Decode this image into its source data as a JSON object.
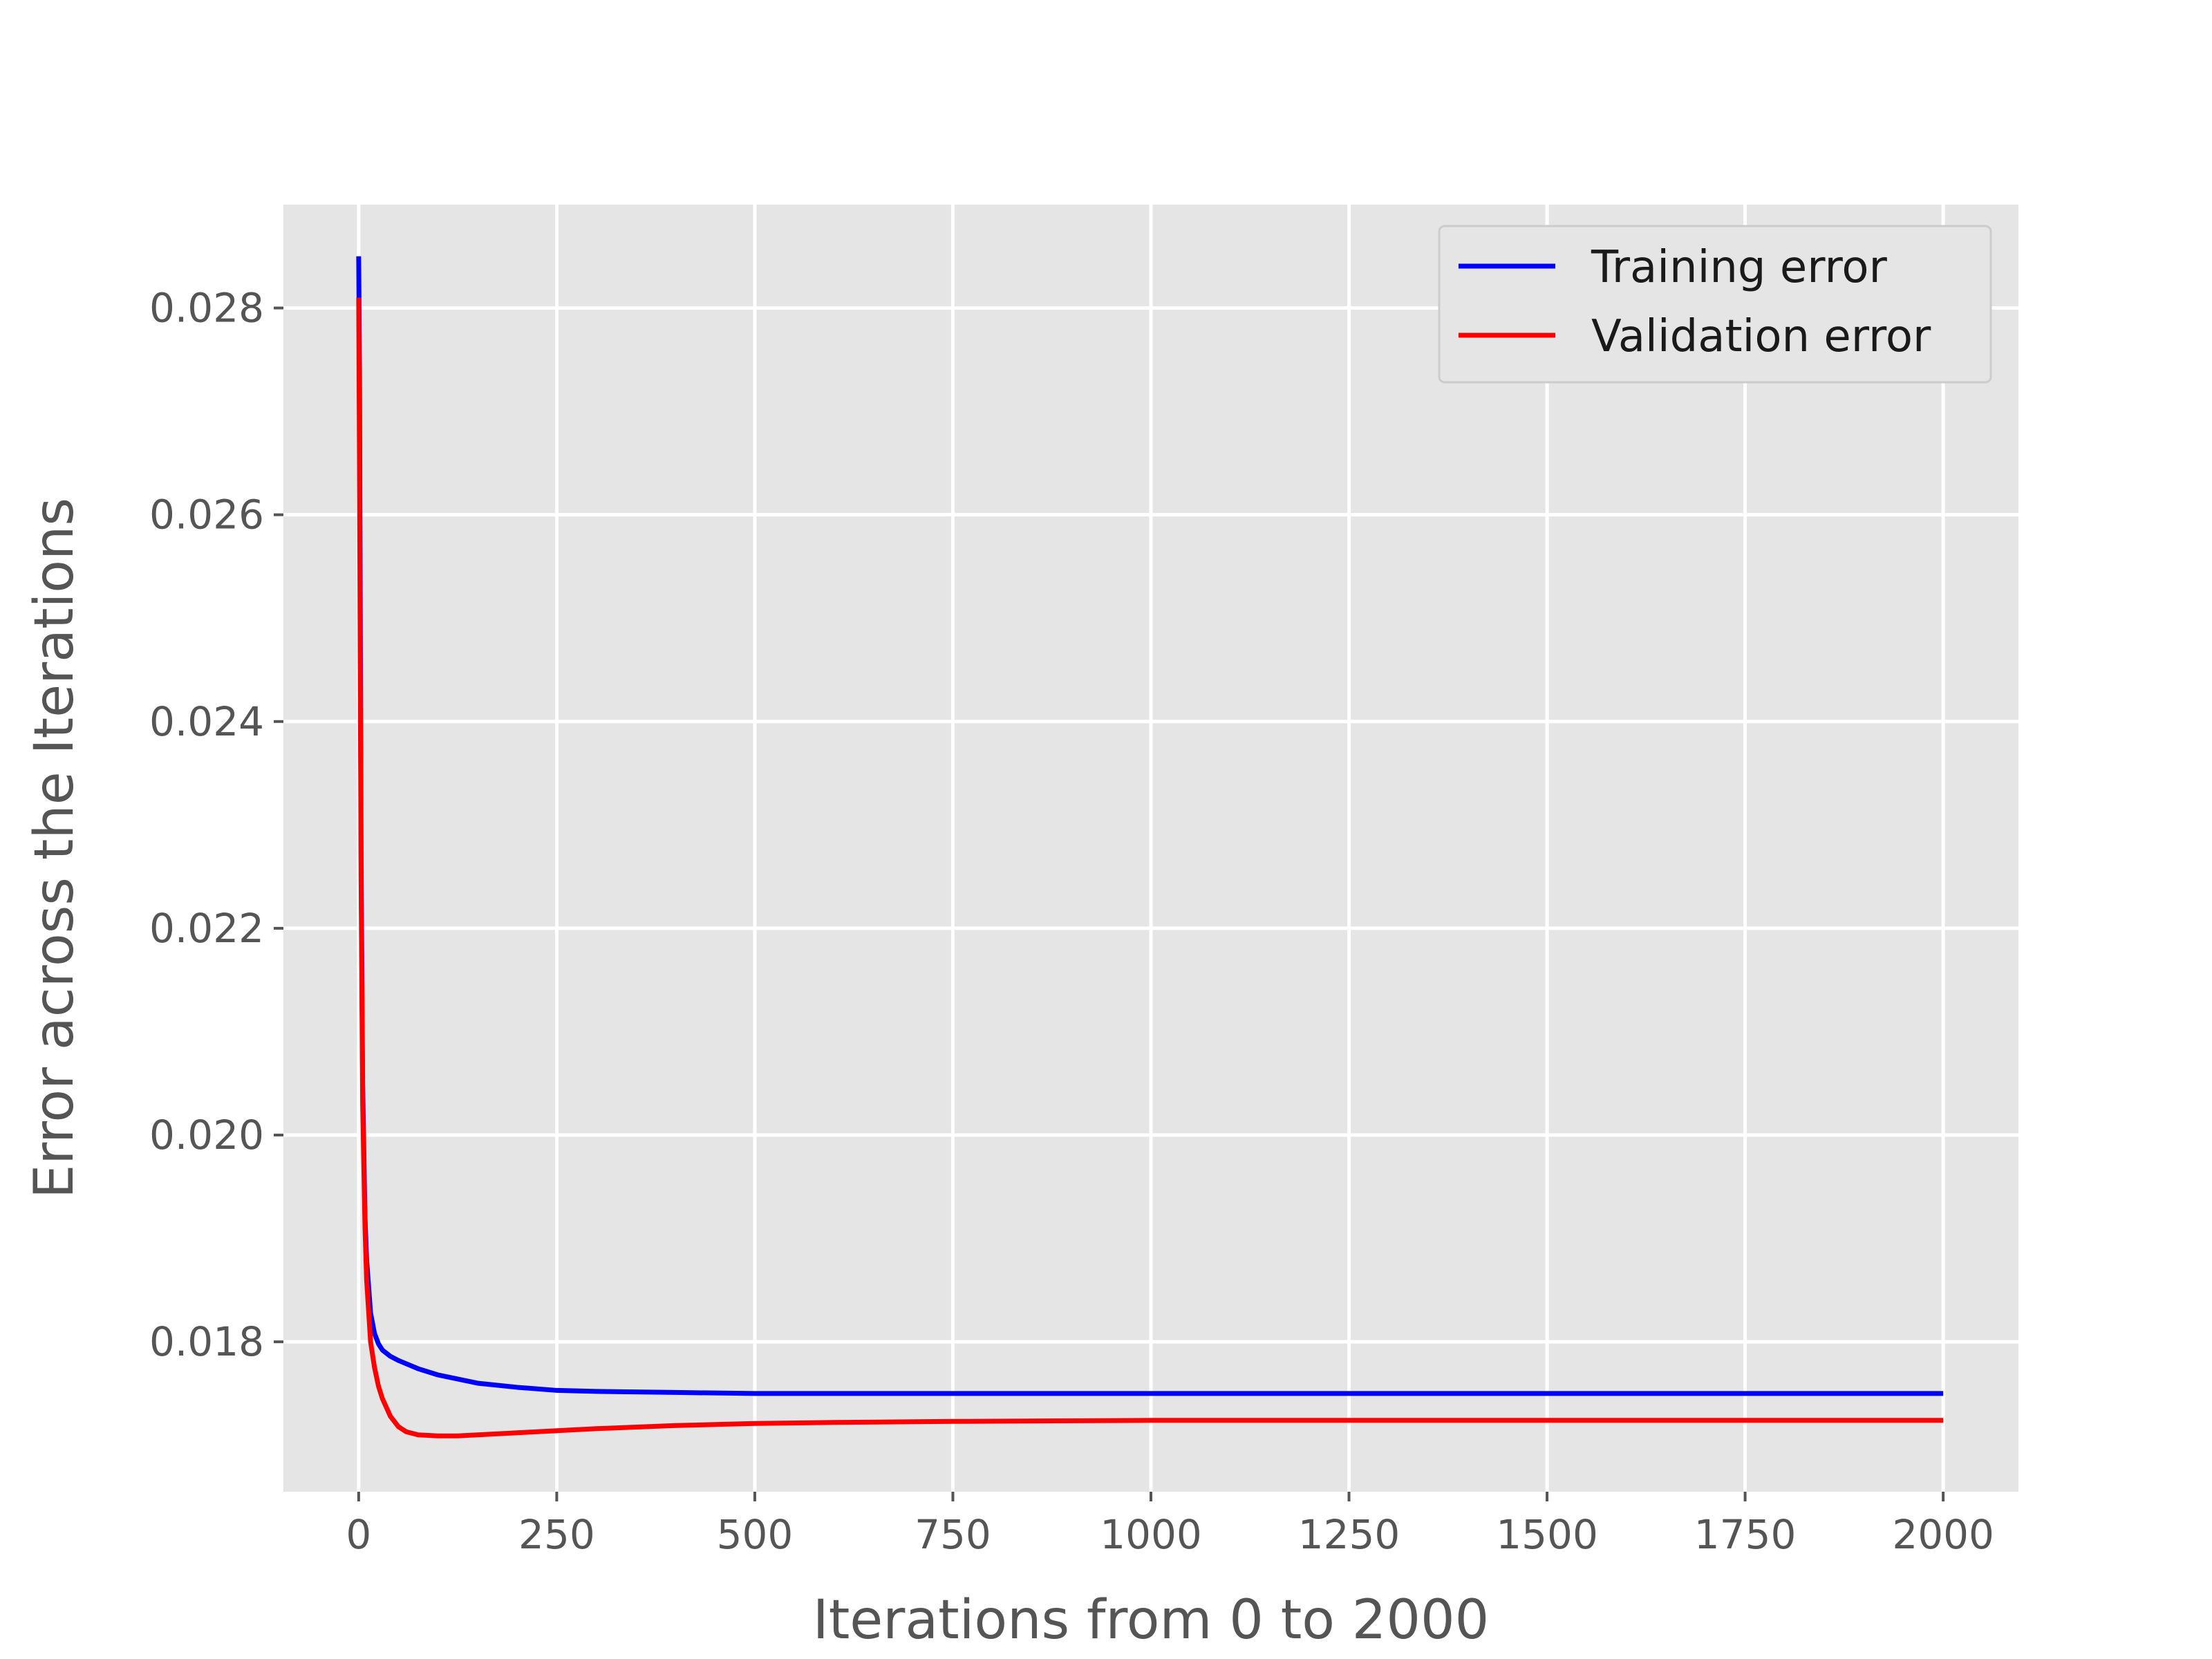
{
  "chart_data": {
    "type": "line",
    "title": "",
    "xlabel": "Iterations from 0 to 2000",
    "ylabel": "Error across the Iterations",
    "xlim": [
      -95,
      2095
    ],
    "ylim": [
      0.01655,
      0.029
    ],
    "grid": true,
    "legend_position": "top-right",
    "x_ticks": [
      0,
      250,
      500,
      750,
      1000,
      1250,
      1500,
      1750,
      2000
    ],
    "x_tick_labels": [
      "0",
      "250",
      "500",
      "750",
      "1000",
      "1250",
      "1500",
      "1750",
      "2000"
    ],
    "y_ticks": [
      0.018,
      0.02,
      0.022,
      0.024,
      0.026,
      0.028
    ],
    "y_tick_labels": [
      "0.018",
      "0.020",
      "0.022",
      "0.024",
      "0.026",
      "0.028"
    ],
    "series": [
      {
        "name": "Training error",
        "color": "#0000ff",
        "x": [
          0,
          1,
          2,
          3,
          5,
          8,
          10,
          15,
          20,
          25,
          30,
          40,
          50,
          75,
          100,
          150,
          200,
          250,
          300,
          400,
          500,
          600,
          750,
          1000,
          1250,
          1500,
          1750,
          2000
        ],
        "y": [
          0.0285,
          0.0274,
          0.0252,
          0.0228,
          0.0205,
          0.0192,
          0.0188,
          0.01828,
          0.01808,
          0.01798,
          0.01792,
          0.01786,
          0.01782,
          0.01774,
          0.01768,
          0.0176,
          0.01756,
          0.01753,
          0.01752,
          0.01751,
          0.0175,
          0.0175,
          0.0175,
          0.0175,
          0.0175,
          0.0175,
          0.0175,
          0.0175
        ]
      },
      {
        "name": "Validation error",
        "color": "#ff0000",
        "x": [
          0,
          1,
          2,
          3,
          5,
          8,
          10,
          15,
          20,
          25,
          30,
          40,
          50,
          60,
          75,
          100,
          125,
          150,
          200,
          250,
          300,
          400,
          500,
          600,
          750,
          1000,
          1250,
          1500,
          1750,
          2000
        ],
        "y": [
          0.0281,
          0.0265,
          0.0245,
          0.0225,
          0.0203,
          0.0191,
          0.0186,
          0.018,
          0.01775,
          0.01757,
          0.01745,
          0.01728,
          0.01718,
          0.01713,
          0.0171,
          0.01709,
          0.01709,
          0.0171,
          0.01712,
          0.01714,
          0.01716,
          0.01719,
          0.01721,
          0.01722,
          0.01723,
          0.01724,
          0.01724,
          0.01724,
          0.01724,
          0.01724
        ]
      }
    ]
  }
}
